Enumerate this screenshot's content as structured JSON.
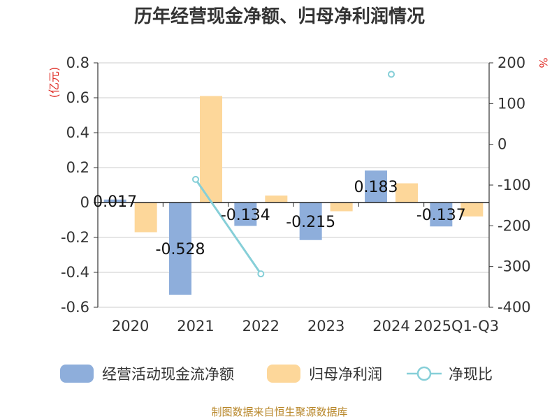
{
  "chart_data": {
    "type": "bar",
    "title": "历年经营现金净额、归母净利润情况",
    "categories": [
      "2020",
      "2021",
      "2022",
      "2023",
      "2024",
      "2025Q1-Q3"
    ],
    "series": [
      {
        "name": "经营活动现金流净额",
        "type": "bar",
        "axis": "left",
        "values": [
          0.017,
          -0.528,
          -0.134,
          -0.215,
          0.183,
          -0.137
        ],
        "labels": [
          "0.017",
          "-0.528",
          "-0.134",
          "-0.215",
          "0.183",
          "-0.137"
        ],
        "color": "#8eaedb"
      },
      {
        "name": "归母净利润",
        "type": "bar",
        "axis": "left",
        "values": [
          -0.17,
          0.61,
          0.04,
          -0.05,
          0.11,
          -0.08
        ],
        "color": "#fdd79a"
      },
      {
        "name": "净现比",
        "type": "line",
        "axis": "right",
        "values": [
          null,
          -86,
          -318,
          null,
          172,
          null
        ],
        "color": "#86cfd8"
      }
    ],
    "left_axis": {
      "unit": "(亿元)",
      "min": -0.6,
      "max": 0.8,
      "ticks": [
        "0.8",
        "0.6",
        "0.4",
        "0.2",
        "0",
        "-0.2",
        "-0.4",
        "-0.6"
      ]
    },
    "right_axis": {
      "unit": "%",
      "min": -400,
      "max": 200,
      "ticks": [
        "200",
        "100",
        "0",
        "-100",
        "-200",
        "-300",
        "-400"
      ]
    },
    "legend_position": "bottom",
    "grid": true
  },
  "source": "制图数据来自恒生聚源数据库"
}
